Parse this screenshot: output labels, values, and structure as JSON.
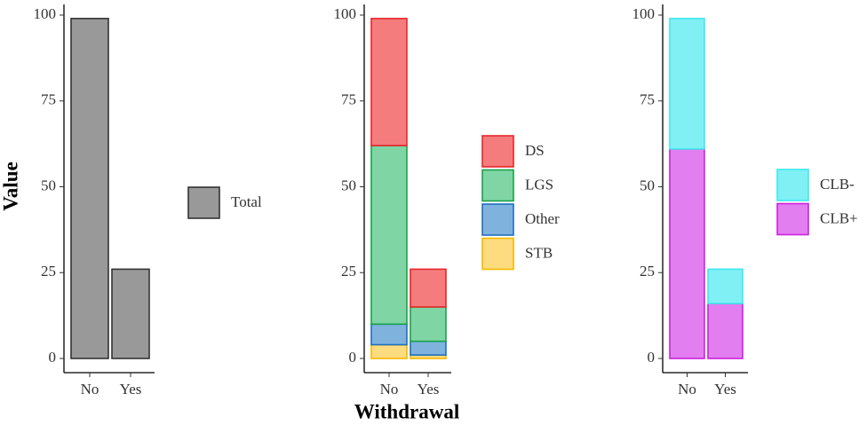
{
  "chart_data": [
    {
      "type": "bar",
      "stacked": true,
      "y_label": "Value",
      "categories": [
        "No",
        "Yes"
      ],
      "series": [
        {
          "name": "Total",
          "color": "#999999",
          "edgecolor": "#333333",
          "values": [
            99,
            26
          ]
        }
      ],
      "ylim": [
        0,
        100
      ],
      "yticks": [
        0,
        25,
        50,
        75,
        100
      ]
    },
    {
      "type": "bar",
      "stacked": true,
      "x_label": "Withdrawal",
      "categories": [
        "No",
        "Yes"
      ],
      "series": [
        {
          "name": "STB",
          "color": "#fddc80",
          "edgecolor": "#f5b800",
          "values": [
            4,
            1
          ]
        },
        {
          "name": "Other",
          "color": "#7fb3dd",
          "edgecolor": "#1f6fc0",
          "values": [
            6,
            4
          ]
        },
        {
          "name": "LGS",
          "color": "#7fd6a4",
          "edgecolor": "#1aa14a",
          "values": [
            52,
            10
          ]
        },
        {
          "name": "DS",
          "color": "#f47c7c",
          "edgecolor": "#e8262b",
          "values": [
            37,
            11
          ]
        }
      ],
      "ylim": [
        0,
        100
      ],
      "yticks": [
        0,
        25,
        50,
        75,
        100
      ]
    },
    {
      "type": "bar",
      "stacked": true,
      "categories": [
        "No",
        "Yes"
      ],
      "series": [
        {
          "name": "CLB+",
          "color": "#e27ef0",
          "edgecolor": "#cc22dd",
          "values": [
            61,
            16
          ]
        },
        {
          "name": "CLB-",
          "color": "#80f0f5",
          "edgecolor": "#3ee8ee",
          "values": [
            38,
            10
          ]
        }
      ],
      "ylim": [
        0,
        100
      ],
      "yticks": [
        0,
        25,
        50,
        75,
        100
      ]
    }
  ]
}
